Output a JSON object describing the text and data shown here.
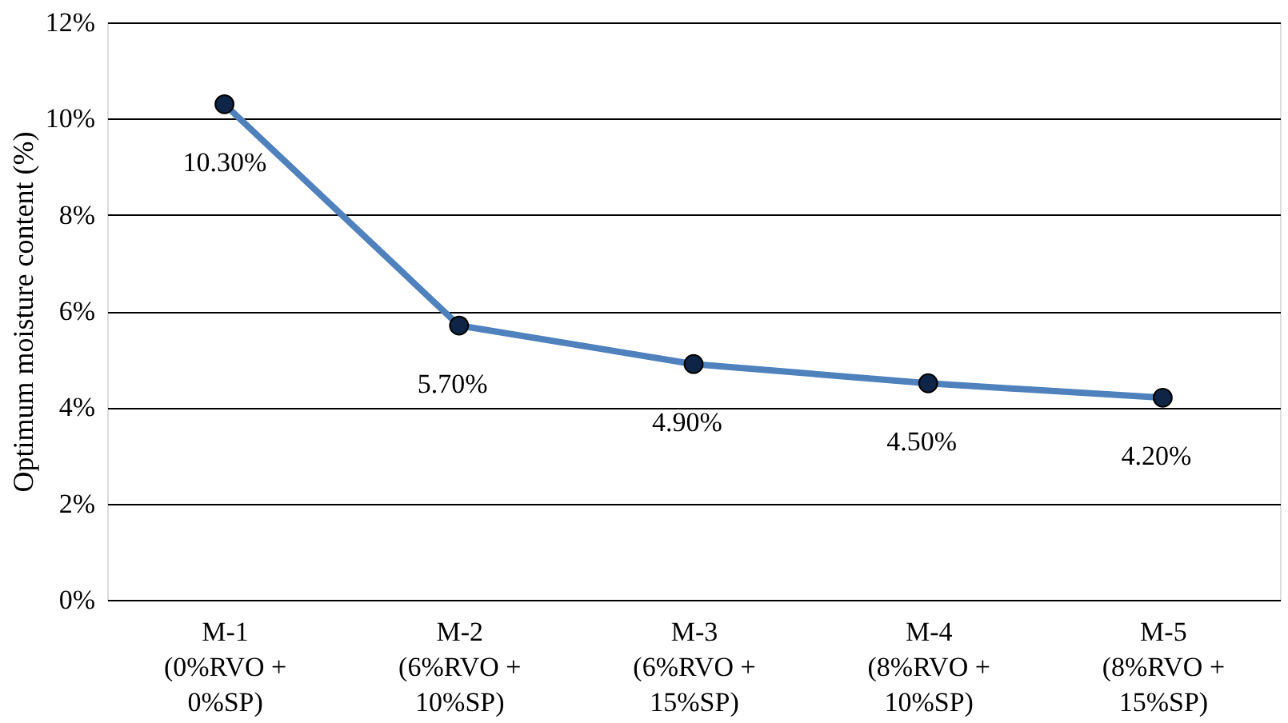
{
  "chart_data": {
    "type": "line",
    "ylabel": "Optimum moisture content (%)",
    "categories": [
      "M-1 (0%RVO + 0%SP)",
      "M-2 (6%RVO + 10%SP)",
      "M-3 (6%RVO + 15%SP)",
      "M-4 (8%RVO + 10%SP)",
      "M-5 (8%RVO + 15%SP)"
    ],
    "series": [
      {
        "color": "#4f81bd",
        "values": [
          10.3,
          5.7,
          4.9,
          4.5,
          4.2
        ]
      }
    ],
    "value_labels": [
      "10.30%",
      "5.70%",
      "4.90%",
      "4.50%",
      "4.20%"
    ],
    "ylim": [
      0,
      12
    ],
    "yticks": [
      {
        "value": 0,
        "label": "0%"
      },
      {
        "value": 2,
        "label": "2%"
      },
      {
        "value": 4,
        "label": "4%"
      },
      {
        "value": 6,
        "label": "6%"
      },
      {
        "value": 8,
        "label": "8%"
      },
      {
        "value": 10,
        "label": "10%"
      },
      {
        "value": 12,
        "label": "12%"
      }
    ],
    "grid": "y",
    "marker": "circle"
  }
}
